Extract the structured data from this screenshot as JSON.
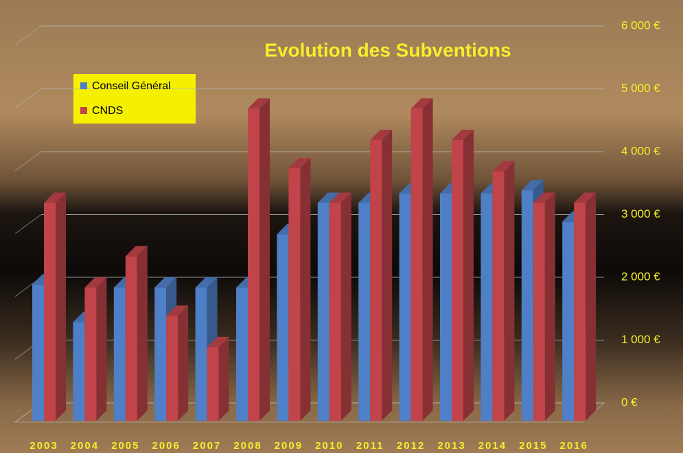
{
  "chart_data": {
    "type": "bar3d",
    "title": "Evolution des Subventions",
    "categories": [
      "2003",
      "2004",
      "2005",
      "2006",
      "2007",
      "2008",
      "2009",
      "2010",
      "2011",
      "2012",
      "2013",
      "2014",
      "2015",
      "2016"
    ],
    "series": [
      {
        "name": "Conseil Général",
        "color": "#4f7fc6",
        "values": [
          2050,
          1450,
          2000,
          2000,
          2000,
          2000,
          2850,
          3350,
          3350,
          3500,
          3500,
          3500,
          3550,
          3050
        ]
      },
      {
        "name": "CNDS",
        "color": "#c0444a",
        "values": [
          3350,
          2000,
          2500,
          1550,
          1050,
          4850,
          3900,
          3350,
          4350,
          4850,
          4350,
          3850,
          3350,
          3350
        ]
      }
    ],
    "ylim": [
      0,
      6000
    ],
    "yticks": [
      {
        "value": 0,
        "label": "0 €"
      },
      {
        "value": 1000,
        "label": "1 000 €"
      },
      {
        "value": 2000,
        "label": "2 000 €"
      },
      {
        "value": 3000,
        "label": "3 000 €"
      },
      {
        "value": 4000,
        "label": "4 000 €"
      },
      {
        "value": 5000,
        "label": "5 000 €"
      },
      {
        "value": 6000,
        "label": "6 000 €"
      }
    ],
    "grid": true
  }
}
